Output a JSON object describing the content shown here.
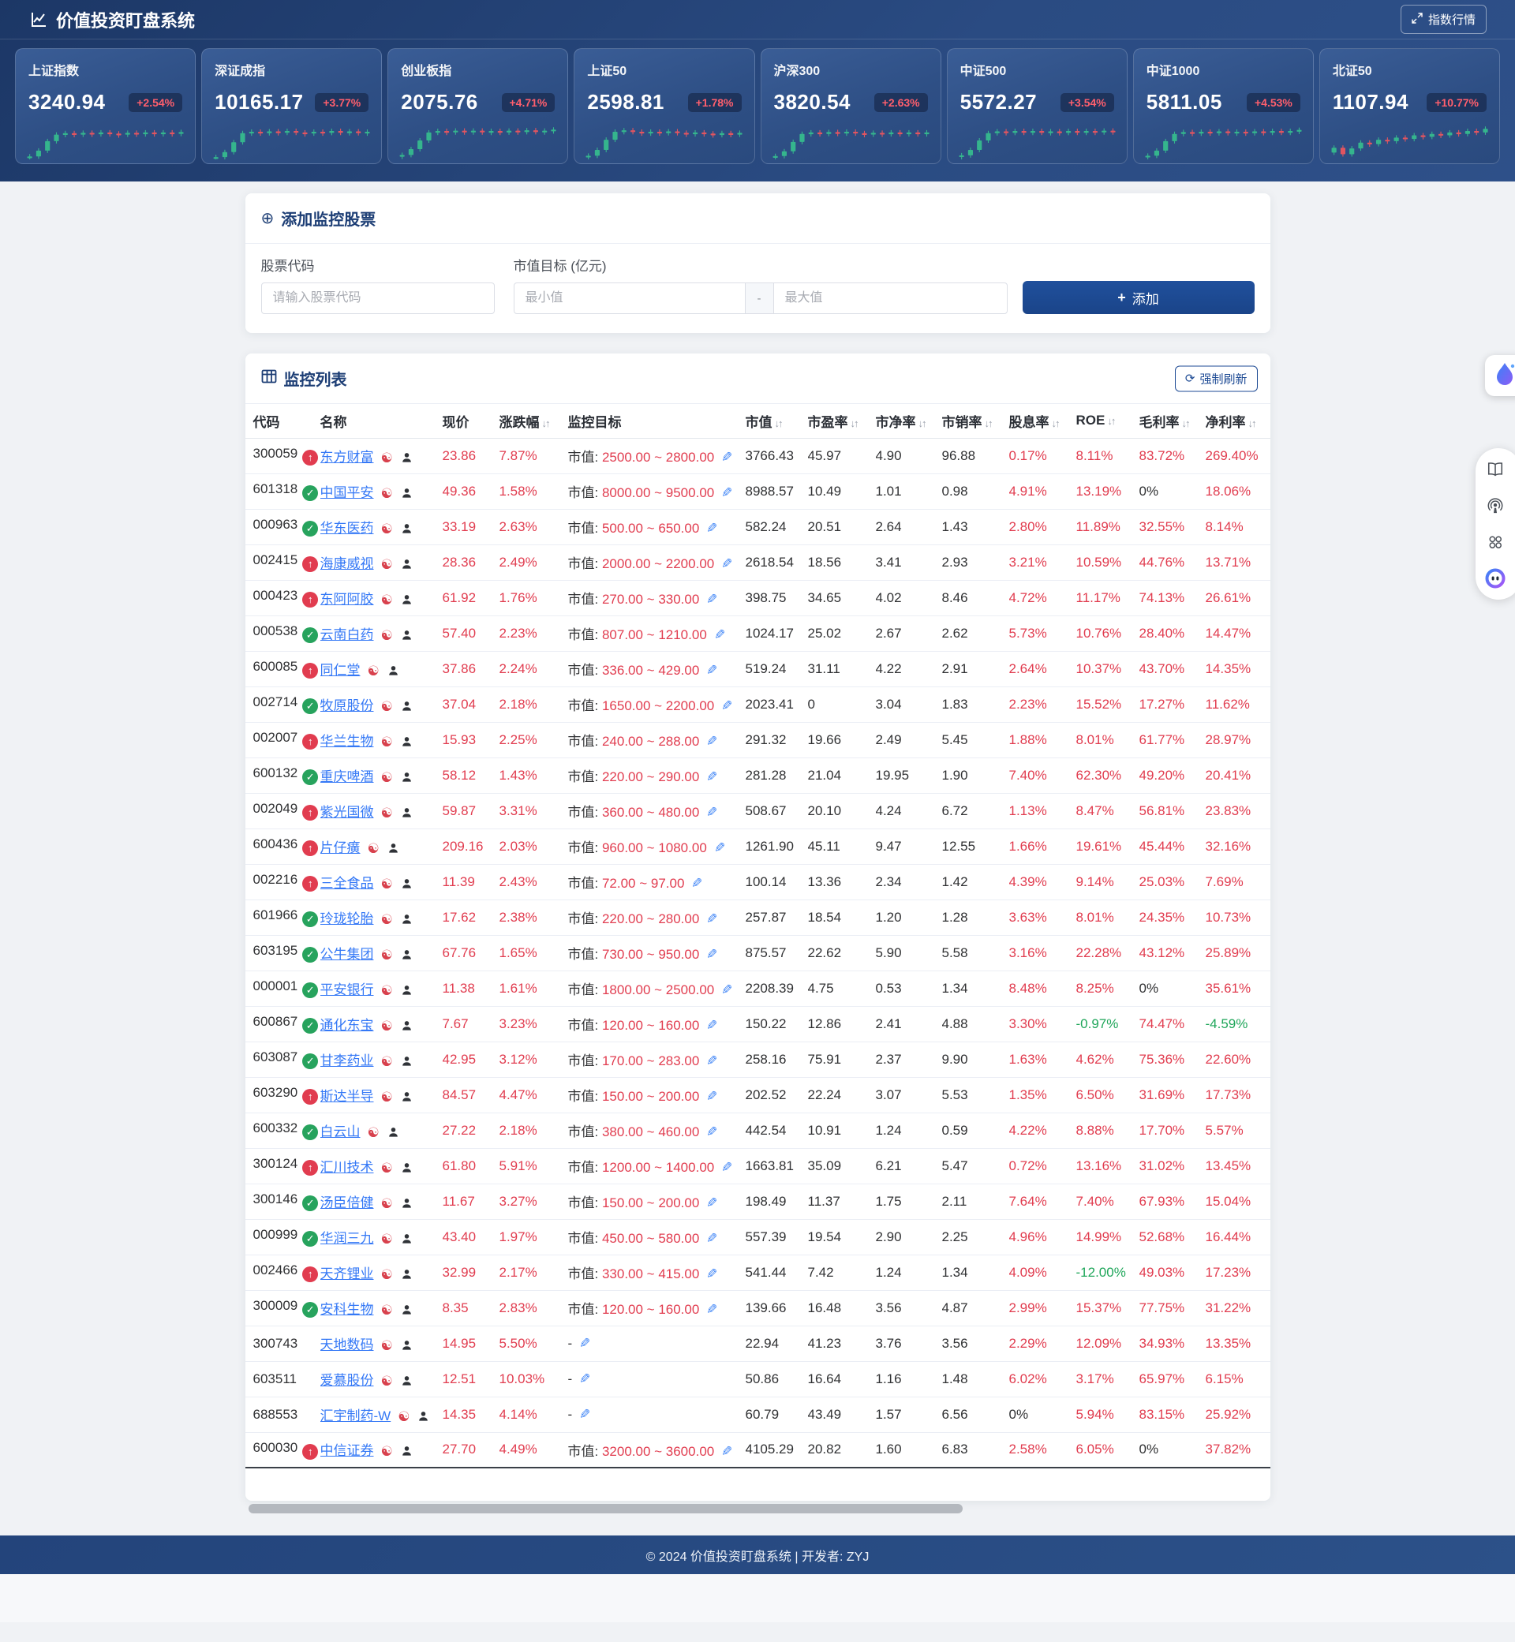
{
  "header": {
    "title": "价值投资盯盘系统",
    "index_quotes_button": "指数行情"
  },
  "indices": [
    {
      "name": "上证指数",
      "value": "3240.94",
      "change": "+2.54%",
      "candles": [
        6,
        22,
        48,
        66,
        70,
        66,
        71,
        68,
        72,
        69,
        66,
        71,
        68,
        72,
        69,
        72,
        70,
        73
      ]
    },
    {
      "name": "深证成指",
      "value": "10165.17",
      "change": "+3.77%",
      "candles": [
        4,
        18,
        45,
        70,
        74,
        70,
        75,
        72,
        76,
        72,
        70,
        74,
        71,
        76,
        72,
        75,
        70,
        74
      ]
    },
    {
      "name": "创业板指",
      "value": "2075.76",
      "change": "+4.71%",
      "candles": [
        10,
        26,
        50,
        72,
        76,
        73,
        77,
        74,
        77,
        73,
        76,
        72,
        77,
        74,
        78,
        74,
        77,
        80
      ]
    },
    {
      "name": "上证50",
      "value": "2598.81",
      "change": "+1.78%",
      "candles": [
        8,
        24,
        52,
        74,
        78,
        74,
        70,
        74,
        71,
        75,
        71,
        68,
        72,
        69,
        65,
        70,
        66,
        71
      ]
    },
    {
      "name": "沪深300",
      "value": "3820.54",
      "change": "+2.63%",
      "candles": [
        7,
        20,
        46,
        68,
        72,
        68,
        73,
        70,
        74,
        70,
        67,
        71,
        68,
        72,
        69,
        72,
        68,
        72
      ]
    },
    {
      "name": "中证500",
      "value": "5572.27",
      "change": "+3.54%",
      "candles": [
        9,
        24,
        50,
        70,
        75,
        71,
        76,
        72,
        76,
        72,
        75,
        71,
        76,
        72,
        76,
        73,
        77,
        74
      ]
    },
    {
      "name": "中证1000",
      "value": "5811.05",
      "change": "+4.53%",
      "candles": [
        8,
        22,
        48,
        68,
        73,
        69,
        74,
        70,
        75,
        71,
        74,
        70,
        75,
        72,
        76,
        72,
        76,
        79
      ]
    },
    {
      "name": "北证50",
      "value": "1107.94",
      "change": "+10.77%",
      "candles": [
        30,
        12,
        28,
        44,
        40,
        52,
        48,
        58,
        54,
        64,
        60,
        68,
        64,
        72,
        68,
        76,
        72,
        82
      ]
    }
  ],
  "add_card": {
    "title": "添加监控股票",
    "code_label": "股票代码",
    "code_placeholder": "请输入股票代码",
    "cap_label": "市值目标 (亿元)",
    "min_placeholder": "最小值",
    "separator": "-",
    "max_placeholder": "最大值",
    "add_button": "添加",
    "plus_sign": "+"
  },
  "monitor_card": {
    "title": "监控列表",
    "refresh_button": "强制刷新",
    "refresh_icon_glyph": "⟳",
    "sort_icon_glyph": "↓↑",
    "target_prefix": "市值:",
    "empty_target": "-",
    "columns": [
      {
        "label": "代码",
        "sortable": false
      },
      {
        "label": "名称",
        "sortable": false
      },
      {
        "label": "现价",
        "sortable": false
      },
      {
        "label": "涨跌幅",
        "sortable": true
      },
      {
        "label": "监控目标",
        "sortable": false
      },
      {
        "label": "市值",
        "sortable": true
      },
      {
        "label": "市盈率",
        "sortable": true
      },
      {
        "label": "市净率",
        "sortable": true
      },
      {
        "label": "市销率",
        "sortable": true
      },
      {
        "label": "股息率",
        "sortable": true
      },
      {
        "label": "ROE",
        "sortable": true
      },
      {
        "label": "毛利率",
        "sortable": true
      },
      {
        "label": "净利率",
        "sortable": true
      }
    ]
  },
  "rows": [
    {
      "code": "300059",
      "status": "up",
      "name": "东方财富",
      "price": "23.86",
      "change": "7.87%",
      "target": "2500.00 ~ 2800.00",
      "cap": "3766.43",
      "pe": "45.97",
      "pb": "4.90",
      "ps": "96.88",
      "dividend": "0.17%",
      "roe": "8.11%",
      "gross": "83.72%",
      "net": "269.40%"
    },
    {
      "code": "601318",
      "status": "ok",
      "name": "中国平安",
      "price": "49.36",
      "change": "1.58%",
      "target": "8000.00 ~ 9500.00",
      "cap": "8988.57",
      "pe": "10.49",
      "pb": "1.01",
      "ps": "0.98",
      "dividend": "4.91%",
      "roe": "13.19%",
      "gross": "0%",
      "net": "18.06%"
    },
    {
      "code": "000963",
      "status": "ok",
      "name": "华东医药",
      "price": "33.19",
      "change": "2.63%",
      "target": "500.00 ~ 650.00",
      "cap": "582.24",
      "pe": "20.51",
      "pb": "2.64",
      "ps": "1.43",
      "dividend": "2.80%",
      "roe": "11.89%",
      "gross": "32.55%",
      "net": "8.14%"
    },
    {
      "code": "002415",
      "status": "up",
      "name": "海康威视",
      "price": "28.36",
      "change": "2.49%",
      "target": "2000.00 ~ 2200.00",
      "cap": "2618.54",
      "pe": "18.56",
      "pb": "3.41",
      "ps": "2.93",
      "dividend": "3.21%",
      "roe": "10.59%",
      "gross": "44.76%",
      "net": "13.71%"
    },
    {
      "code": "000423",
      "status": "up",
      "name": "东阿阿胶",
      "price": "61.92",
      "change": "1.76%",
      "target": "270.00 ~ 330.00",
      "cap": "398.75",
      "pe": "34.65",
      "pb": "4.02",
      "ps": "8.46",
      "dividend": "4.72%",
      "roe": "11.17%",
      "gross": "74.13%",
      "net": "26.61%"
    },
    {
      "code": "000538",
      "status": "ok",
      "name": "云南白药",
      "price": "57.40",
      "change": "2.23%",
      "target": "807.00 ~ 1210.00",
      "cap": "1024.17",
      "pe": "25.02",
      "pb": "2.67",
      "ps": "2.62",
      "dividend": "5.73%",
      "roe": "10.76%",
      "gross": "28.40%",
      "net": "14.47%"
    },
    {
      "code": "600085",
      "status": "up",
      "name": "同仁堂",
      "price": "37.86",
      "change": "2.24%",
      "target": "336.00 ~ 429.00",
      "cap": "519.24",
      "pe": "31.11",
      "pb": "4.22",
      "ps": "2.91",
      "dividend": "2.64%",
      "roe": "10.37%",
      "gross": "43.70%",
      "net": "14.35%"
    },
    {
      "code": "002714",
      "status": "ok",
      "name": "牧原股份",
      "price": "37.04",
      "change": "2.18%",
      "target": "1650.00 ~ 2200.00",
      "cap": "2023.41",
      "pe": "0",
      "pb": "3.04",
      "ps": "1.83",
      "dividend": "2.23%",
      "roe": "15.52%",
      "gross": "17.27%",
      "net": "11.62%"
    },
    {
      "code": "002007",
      "status": "up",
      "name": "华兰生物",
      "price": "15.93",
      "change": "2.25%",
      "target": "240.00 ~ 288.00",
      "cap": "291.32",
      "pe": "19.66",
      "pb": "2.49",
      "ps": "5.45",
      "dividend": "1.88%",
      "roe": "8.01%",
      "gross": "61.77%",
      "net": "28.97%"
    },
    {
      "code": "600132",
      "status": "ok",
      "name": "重庆啤酒",
      "price": "58.12",
      "change": "1.43%",
      "target": "220.00 ~ 290.00",
      "cap": "281.28",
      "pe": "21.04",
      "pb": "19.95",
      "ps": "1.90",
      "dividend": "7.40%",
      "roe": "62.30%",
      "gross": "49.20%",
      "net": "20.41%"
    },
    {
      "code": "002049",
      "status": "up",
      "name": "紫光国微",
      "price": "59.87",
      "change": "3.31%",
      "target": "360.00 ~ 480.00",
      "cap": "508.67",
      "pe": "20.10",
      "pb": "4.24",
      "ps": "6.72",
      "dividend": "1.13%",
      "roe": "8.47%",
      "gross": "56.81%",
      "net": "23.83%"
    },
    {
      "code": "600436",
      "status": "up",
      "name": "片仔癀",
      "price": "209.16",
      "change": "2.03%",
      "target": "960.00 ~ 1080.00",
      "cap": "1261.90",
      "pe": "45.11",
      "pb": "9.47",
      "ps": "12.55",
      "dividend": "1.66%",
      "roe": "19.61%",
      "gross": "45.44%",
      "net": "32.16%"
    },
    {
      "code": "002216",
      "status": "up",
      "name": "三全食品",
      "price": "11.39",
      "change": "2.43%",
      "target": "72.00 ~ 97.00",
      "cap": "100.14",
      "pe": "13.36",
      "pb": "2.34",
      "ps": "1.42",
      "dividend": "4.39%",
      "roe": "9.14%",
      "gross": "25.03%",
      "net": "7.69%"
    },
    {
      "code": "601966",
      "status": "ok",
      "name": "玲珑轮胎",
      "price": "17.62",
      "change": "2.38%",
      "target": "220.00 ~ 280.00",
      "cap": "257.87",
      "pe": "18.54",
      "pb": "1.20",
      "ps": "1.28",
      "dividend": "3.63%",
      "roe": "8.01%",
      "gross": "24.35%",
      "net": "10.73%"
    },
    {
      "code": "603195",
      "status": "ok",
      "name": "公牛集团",
      "price": "67.76",
      "change": "1.65%",
      "target": "730.00 ~ 950.00",
      "cap": "875.57",
      "pe": "22.62",
      "pb": "5.90",
      "ps": "5.58",
      "dividend": "3.16%",
      "roe": "22.28%",
      "gross": "43.12%",
      "net": "25.89%"
    },
    {
      "code": "000001",
      "status": "ok",
      "name": "平安银行",
      "price": "11.38",
      "change": "1.61%",
      "target": "1800.00 ~ 2500.00",
      "cap": "2208.39",
      "pe": "4.75",
      "pb": "0.53",
      "ps": "1.34",
      "dividend": "8.48%",
      "roe": "8.25%",
      "gross": "0%",
      "net": "35.61%"
    },
    {
      "code": "600867",
      "status": "ok",
      "name": "通化东宝",
      "price": "7.67",
      "change": "3.23%",
      "target": "120.00 ~ 160.00",
      "cap": "150.22",
      "pe": "12.86",
      "pb": "2.41",
      "ps": "4.88",
      "dividend": "3.30%",
      "roe": "-0.97%",
      "gross": "74.47%",
      "net": "-4.59%"
    },
    {
      "code": "603087",
      "status": "ok",
      "name": "甘李药业",
      "price": "42.95",
      "change": "3.12%",
      "target": "170.00 ~ 283.00",
      "cap": "258.16",
      "pe": "75.91",
      "pb": "2.37",
      "ps": "9.90",
      "dividend": "1.63%",
      "roe": "4.62%",
      "gross": "75.36%",
      "net": "22.60%"
    },
    {
      "code": "603290",
      "status": "up",
      "name": "斯达半导",
      "price": "84.57",
      "change": "4.47%",
      "target": "150.00 ~ 200.00",
      "cap": "202.52",
      "pe": "22.24",
      "pb": "3.07",
      "ps": "5.53",
      "dividend": "1.35%",
      "roe": "6.50%",
      "gross": "31.69%",
      "net": "17.73%"
    },
    {
      "code": "600332",
      "status": "ok",
      "name": "白云山",
      "price": "27.22",
      "change": "2.18%",
      "target": "380.00 ~ 460.00",
      "cap": "442.54",
      "pe": "10.91",
      "pb": "1.24",
      "ps": "0.59",
      "dividend": "4.22%",
      "roe": "8.88%",
      "gross": "17.70%",
      "net": "5.57%"
    },
    {
      "code": "300124",
      "status": "up",
      "name": "汇川技术",
      "price": "61.80",
      "change": "5.91%",
      "target": "1200.00 ~ 1400.00",
      "cap": "1663.81",
      "pe": "35.09",
      "pb": "6.21",
      "ps": "5.47",
      "dividend": "0.72%",
      "roe": "13.16%",
      "gross": "31.02%",
      "net": "13.45%"
    },
    {
      "code": "300146",
      "status": "ok",
      "name": "汤臣倍健",
      "price": "11.67",
      "change": "3.27%",
      "target": "150.00 ~ 200.00",
      "cap": "198.49",
      "pe": "11.37",
      "pb": "1.75",
      "ps": "2.11",
      "dividend": "7.64%",
      "roe": "7.40%",
      "gross": "67.93%",
      "net": "15.04%"
    },
    {
      "code": "000999",
      "status": "ok",
      "name": "华润三九",
      "price": "43.40",
      "change": "1.97%",
      "target": "450.00 ~ 580.00",
      "cap": "557.39",
      "pe": "19.54",
      "pb": "2.90",
      "ps": "2.25",
      "dividend": "4.96%",
      "roe": "14.99%",
      "gross": "52.68%",
      "net": "16.44%"
    },
    {
      "code": "002466",
      "status": "up",
      "name": "天齐锂业",
      "price": "32.99",
      "change": "2.17%",
      "target": "330.00 ~ 415.00",
      "cap": "541.44",
      "pe": "7.42",
      "pb": "1.24",
      "ps": "1.34",
      "dividend": "4.09%",
      "roe": "-12.00%",
      "gross": "49.03%",
      "net": "17.23%"
    },
    {
      "code": "300009",
      "status": "ok",
      "name": "安科生物",
      "price": "8.35",
      "change": "2.83%",
      "target": "120.00 ~ 160.00",
      "cap": "139.66",
      "pe": "16.48",
      "pb": "3.56",
      "ps": "4.87",
      "dividend": "2.99%",
      "roe": "15.37%",
      "gross": "77.75%",
      "net": "31.22%"
    },
    {
      "code": "300743",
      "status": "none",
      "name": "天地数码",
      "price": "14.95",
      "change": "5.50%",
      "target": "",
      "cap": "22.94",
      "pe": "41.23",
      "pb": "3.76",
      "ps": "3.56",
      "dividend": "2.29%",
      "roe": "12.09%",
      "gross": "34.93%",
      "net": "13.35%"
    },
    {
      "code": "603511",
      "status": "none",
      "name": "爱慕股份",
      "price": "12.51",
      "change": "10.03%",
      "target": "",
      "cap": "50.86",
      "pe": "16.64",
      "pb": "1.16",
      "ps": "1.48",
      "dividend": "6.02%",
      "roe": "3.17%",
      "gross": "65.97%",
      "net": "6.15%"
    },
    {
      "code": "688553",
      "status": "none",
      "name": "汇宇制药-W",
      "price": "14.35",
      "change": "4.14%",
      "target": "",
      "cap": "60.79",
      "pe": "43.49",
      "pb": "1.57",
      "ps": "6.56",
      "dividend": "0%",
      "roe": "5.94%",
      "gross": "83.15%",
      "net": "25.92%"
    },
    {
      "code": "600030",
      "status": "up",
      "name": "中信证券",
      "price": "27.70",
      "change": "4.49%",
      "target": "3200.00 ~ 3600.00",
      "cap": "4105.29",
      "pe": "20.82",
      "pb": "1.60",
      "ps": "6.83",
      "dividend": "2.58%",
      "roe": "6.05%",
      "gross": "0%",
      "net": "37.82%"
    }
  ],
  "footer": {
    "copyright": "© 2024 价值投资盯盘系统 | 开发者: ZYJ"
  },
  "colors": {
    "up_red": "#e13c4f",
    "down_green": "#1fa65a",
    "candle_up": "#35b58d",
    "candle_down": "#e25560",
    "link_blue": "#3478f6",
    "navy_accent": "#1d4a94"
  }
}
